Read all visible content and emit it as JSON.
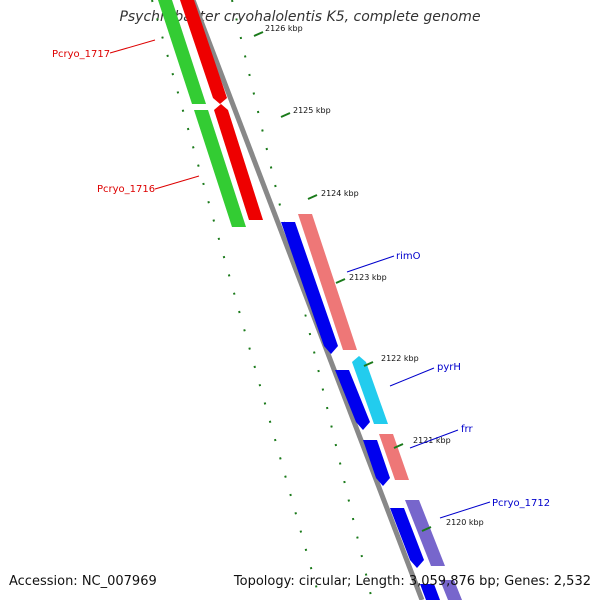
{
  "title": "Psychrobacter cryohalolentis K5, complete genome",
  "accession": "Accession: NC_007969",
  "summary": "Topology: circular; Length: 3,059,876 bp; Genes: 2,532",
  "colors": {
    "backbone": "#888888",
    "tick": "#1a7a1a",
    "label_red": "#dd0000",
    "label_blue": "#0000cc"
  },
  "scale_ticks": [
    {
      "label": "2126 kbp"
    },
    {
      "label": "2125 kbp"
    },
    {
      "label": "2124 kbp"
    },
    {
      "label": "2123 kbp"
    },
    {
      "label": "2122 kbp"
    },
    {
      "label": "2121 kbp"
    },
    {
      "label": "2120 kbp"
    }
  ],
  "genes": [
    {
      "name": "Pcryo_1717",
      "labeled": true,
      "color": "#dd0000"
    },
    {
      "name": "Pcryo_1716",
      "labeled": true,
      "color": "#dd0000"
    },
    {
      "name": "rimO",
      "labeled": true,
      "color": "#0000cc"
    },
    {
      "name": "pyrH",
      "labeled": true,
      "color": "#0000cc"
    },
    {
      "name": "frr",
      "labeled": true,
      "color": "#0000cc"
    },
    {
      "name": "Pcryo_1712",
      "labeled": true,
      "color": "#0000cc"
    }
  ]
}
